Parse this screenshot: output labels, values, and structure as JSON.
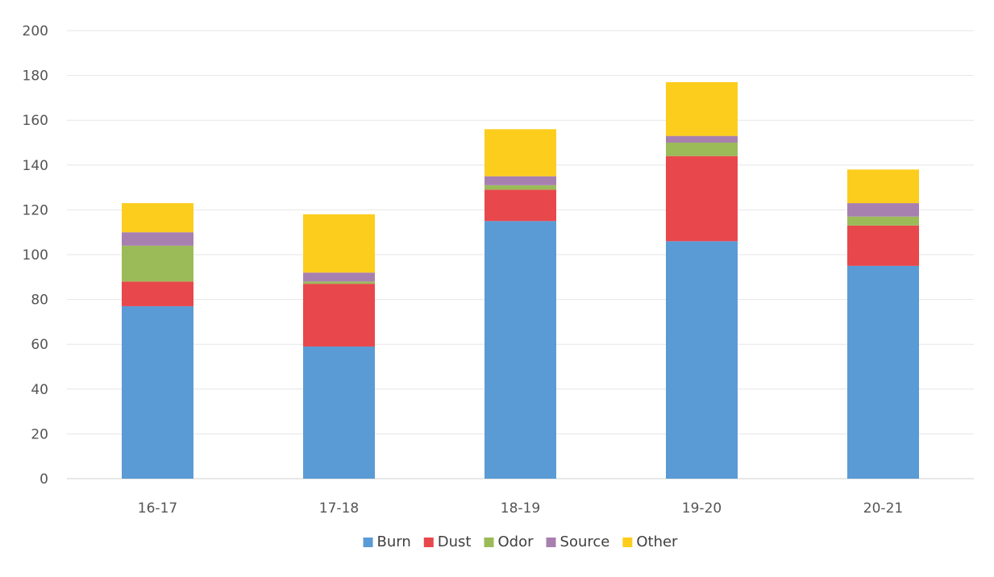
{
  "chart_data": {
    "type": "bar",
    "stacked": true,
    "title": "",
    "xlabel": "",
    "ylabel": "",
    "categories": [
      "16-17",
      "17-18",
      "18-19",
      "19-20",
      "20-21"
    ],
    "ylim": [
      0,
      200
    ],
    "yticks": [
      0,
      20,
      40,
      60,
      80,
      100,
      120,
      140,
      160,
      180,
      200
    ],
    "ytick_labels": [
      "0",
      "20",
      "40",
      "60",
      "80",
      "100",
      "120",
      "140",
      "160",
      "180",
      "200"
    ],
    "grid": true,
    "legend_position": "bottom",
    "series": [
      {
        "name": "Burn",
        "color": "#5b9bd5",
        "values": [
          77,
          59,
          115,
          106,
          95
        ]
      },
      {
        "name": "Dust",
        "color": "#e8474c",
        "values": [
          11,
          28,
          14,
          38,
          18
        ]
      },
      {
        "name": "Odor",
        "color": "#9bbb59",
        "values": [
          16,
          1,
          2,
          6,
          4
        ]
      },
      {
        "name": "Source",
        "color": "#a880b0",
        "values": [
          6,
          4,
          4,
          3,
          6
        ]
      },
      {
        "name": "Other",
        "color": "#fccd1d",
        "values": [
          13,
          26,
          21,
          24,
          15
        ]
      }
    ]
  }
}
